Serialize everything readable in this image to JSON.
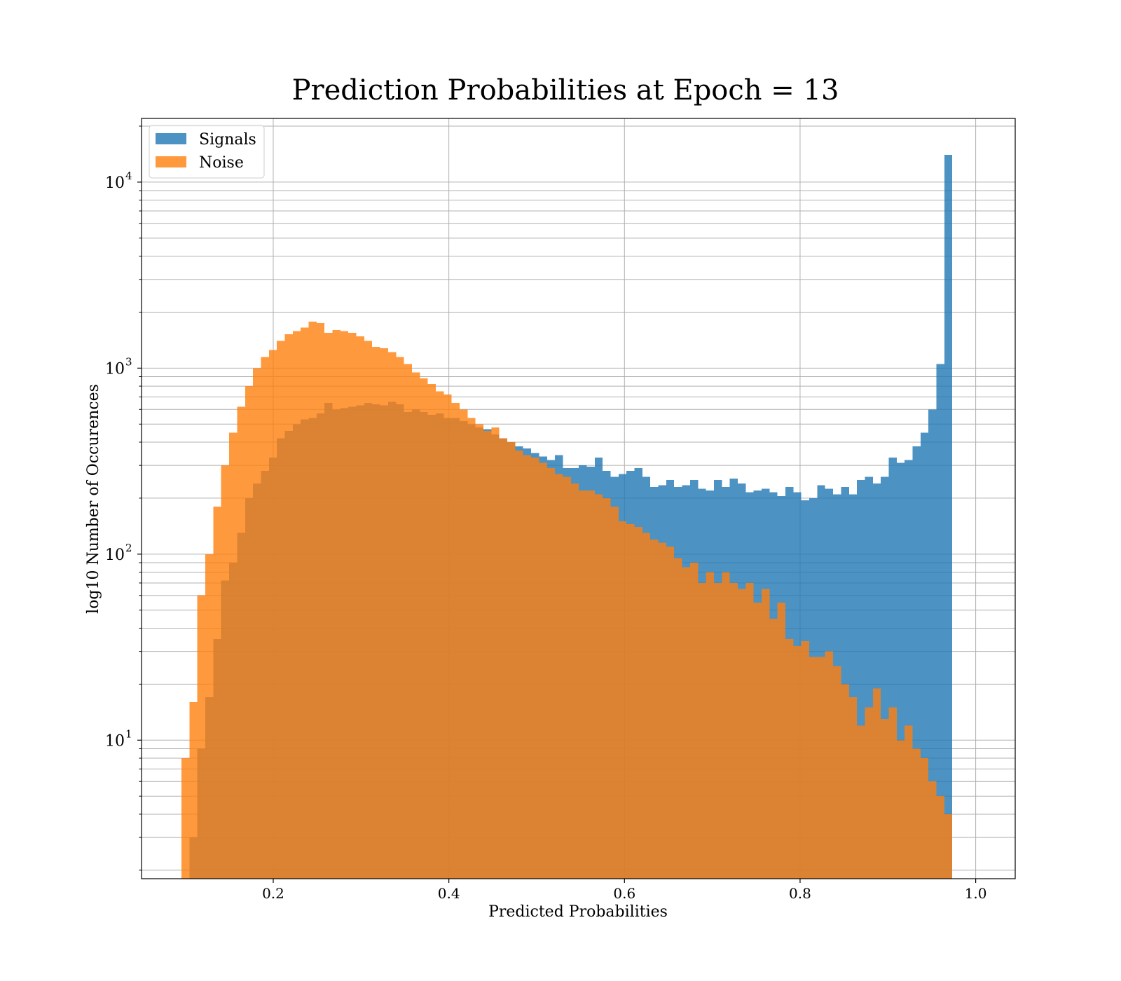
{
  "chart_data": {
    "type": "bar",
    "title": "Prediction Probabilities at Epoch = 13",
    "xlabel": "Predicted Probabilities",
    "ylabel": "log10 Number of Occurences",
    "yscale": "log",
    "xlim": [
      0.05,
      1.045
    ],
    "ylim": [
      1.8,
      22000
    ],
    "grid": true,
    "legend_position": "top-left",
    "xticks": [
      0.2,
      0.4,
      0.6,
      0.8,
      1.0
    ],
    "xtick_labels": [
      "0.2",
      "0.4",
      "0.6",
      "0.8",
      "1.0"
    ],
    "yticks": [
      10,
      100,
      1000,
      10000
    ],
    "ytick_labels": [
      {
        "base": "10",
        "exp": "1"
      },
      {
        "base": "10",
        "exp": "2"
      },
      {
        "base": "10",
        "exp": "3"
      },
      {
        "base": "10",
        "exp": "4"
      }
    ],
    "bin_start": 0.0955,
    "bin_width": 0.00905,
    "series": [
      {
        "name": "Signals",
        "color": "#1f77b4",
        "values": [
          0,
          3,
          9,
          17,
          35,
          72,
          90,
          130,
          200,
          240,
          280,
          330,
          420,
          460,
          500,
          530,
          540,
          570,
          650,
          600,
          610,
          620,
          630,
          650,
          640,
          630,
          660,
          640,
          580,
          600,
          580,
          560,
          570,
          540,
          540,
          520,
          500,
          480,
          470,
          440,
          420,
          400,
          380,
          370,
          350,
          335,
          320,
          340,
          290,
          290,
          300,
          295,
          330,
          280,
          260,
          270,
          280,
          290,
          260,
          230,
          235,
          250,
          230,
          235,
          250,
          225,
          220,
          250,
          230,
          255,
          240,
          215,
          220,
          225,
          215,
          205,
          230,
          215,
          195,
          200,
          235,
          225,
          210,
          230,
          210,
          250,
          260,
          240,
          260,
          330,
          310,
          320,
          380,
          450,
          600,
          1050,
          14000
        ]
      },
      {
        "name": "Noise",
        "color": "#ff7f0e",
        "values": [
          8,
          16,
          60,
          100,
          180,
          300,
          450,
          620,
          800,
          1000,
          1150,
          1250,
          1400,
          1520,
          1580,
          1650,
          1780,
          1750,
          1550,
          1600,
          1580,
          1550,
          1480,
          1400,
          1300,
          1280,
          1220,
          1150,
          1050,
          950,
          880,
          820,
          750,
          720,
          650,
          600,
          540,
          500,
          460,
          480,
          420,
          400,
          360,
          340,
          330,
          310,
          290,
          270,
          260,
          240,
          220,
          220,
          210,
          200,
          180,
          150,
          145,
          140,
          130,
          120,
          115,
          110,
          95,
          85,
          90,
          70,
          80,
          70,
          80,
          70,
          65,
          70,
          55,
          65,
          45,
          55,
          35,
          32,
          34,
          28,
          28,
          30,
          25,
          20,
          17,
          12,
          15,
          19,
          13,
          15,
          10,
          12,
          9,
          8,
          6,
          5,
          4
        ]
      }
    ]
  }
}
